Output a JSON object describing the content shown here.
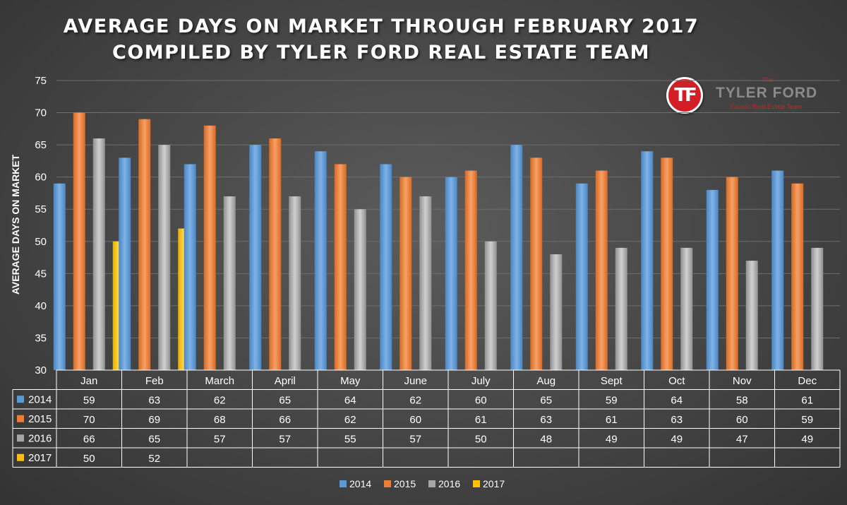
{
  "header": {
    "title_line1": "AVERAGE DAYS ON MARKET THROUGH FEBRUARY 2017",
    "title_line2": "COMPILED BY TYLER FORD REAL ESTATE TEAM"
  },
  "logo": {
    "badge": "TF",
    "the": "The",
    "name": "TYLER FORD",
    "tagline": "Tucson Real Estate Team"
  },
  "chart_data": {
    "type": "bar",
    "title": "AVERAGE DAYS ON MARKET THROUGH FEBRUARY 2017",
    "subtitle": "COMPILED BY TYLER FORD REAL ESTATE TEAM",
    "ylabel": "AVERAGE DAYS ON MARKET",
    "xlabel": "",
    "ylim": [
      30,
      75
    ],
    "yticks": [
      30,
      35,
      40,
      45,
      50,
      55,
      60,
      65,
      70,
      75
    ],
    "grid": true,
    "legend": "bottom",
    "data_table": true,
    "categories": [
      "Jan",
      "Feb",
      "March",
      "April",
      "May",
      "June",
      "July",
      "Aug",
      "Sept",
      "Oct",
      "Nov",
      "Dec"
    ],
    "series": [
      {
        "name": "2014",
        "color": "#5b9bd5",
        "values": [
          59,
          63,
          62,
          65,
          64,
          62,
          60,
          65,
          59,
          64,
          58,
          61
        ]
      },
      {
        "name": "2015",
        "color": "#ed7d31",
        "values": [
          70,
          69,
          68,
          66,
          62,
          60,
          61,
          63,
          61,
          63,
          60,
          59
        ]
      },
      {
        "name": "2016",
        "color": "#a5a5a5",
        "values": [
          66,
          65,
          57,
          57,
          55,
          57,
          50,
          48,
          49,
          49,
          47,
          49
        ]
      },
      {
        "name": "2017",
        "color": "#ffc000",
        "values": [
          50,
          52,
          null,
          null,
          null,
          null,
          null,
          null,
          null,
          null,
          null,
          null
        ]
      }
    ]
  }
}
